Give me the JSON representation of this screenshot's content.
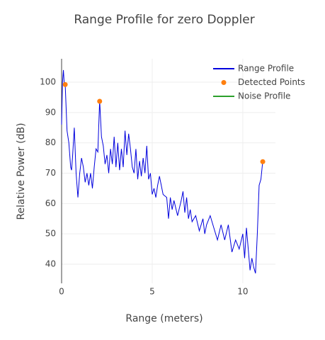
{
  "chart_data": {
    "type": "line",
    "title": "Range Profile for zero Doppler",
    "x_label": "Range (meters)",
    "y_label": "Relative Power (dB)",
    "xlim": [
      0,
      11.8
    ],
    "ylim": [
      33.7,
      107.7
    ],
    "xticks": [
      0,
      5,
      10
    ],
    "yticks": [
      40,
      50,
      60,
      70,
      80,
      90,
      100
    ],
    "grid": true,
    "legend": "top-right",
    "series": [
      {
        "name": "Range Profile",
        "color": "#0000dd",
        "mode": "lines",
        "x": [
          0.0,
          0.05,
          0.1,
          0.15,
          0.2,
          0.3,
          0.4,
          0.5,
          0.55,
          0.6,
          0.7,
          0.8,
          0.9,
          1.0,
          1.1,
          1.2,
          1.3,
          1.4,
          1.5,
          1.6,
          1.7,
          1.8,
          1.9,
          2.0,
          2.1,
          2.2,
          2.3,
          2.4,
          2.5,
          2.6,
          2.7,
          2.8,
          2.9,
          3.0,
          3.1,
          3.2,
          3.3,
          3.4,
          3.5,
          3.6,
          3.7,
          3.8,
          3.9,
          4.0,
          4.1,
          4.2,
          4.3,
          4.4,
          4.5,
          4.6,
          4.7,
          4.8,
          4.9,
          5.0,
          5.1,
          5.2,
          5.3,
          5.4,
          5.5,
          5.6,
          5.8,
          5.9,
          6.0,
          6.1,
          6.2,
          6.4,
          6.6,
          6.7,
          6.8,
          6.9,
          7.0,
          7.1,
          7.2,
          7.4,
          7.6,
          7.8,
          7.9,
          8.0,
          8.2,
          8.4,
          8.6,
          8.8,
          9.0,
          9.2,
          9.4,
          9.6,
          9.8,
          10.0,
          10.1,
          10.2,
          10.3,
          10.4,
          10.5,
          10.6,
          10.7,
          10.8,
          10.9,
          11.0,
          11.1,
          11.15
        ],
        "values": [
          86,
          100,
          104,
          99,
          99,
          84,
          80,
          72,
          71,
          75,
          85,
          70,
          62,
          70,
          75,
          72,
          67,
          70,
          66,
          70,
          65,
          72,
          78,
          77,
          94,
          82,
          79,
          73,
          76,
          70,
          78,
          73,
          82,
          72,
          80,
          71,
          78,
          72,
          84,
          76,
          83,
          78,
          72,
          70,
          78,
          68,
          74,
          69,
          75,
          70,
          79,
          68,
          70,
          63,
          65,
          62,
          66,
          69,
          66,
          63,
          62,
          55,
          62,
          58,
          61,
          56,
          61,
          64,
          57,
          62,
          55,
          58,
          54,
          56,
          51,
          55,
          50,
          53,
          56,
          52,
          48,
          53,
          48,
          53,
          44,
          48,
          45,
          50,
          42,
          52,
          45,
          38,
          42,
          39,
          37,
          50,
          66,
          68,
          74,
          74
        ]
      },
      {
        "name": "Detected Points",
        "color": "#ff7f0e",
        "mode": "markers",
        "x": [
          0.2,
          2.1,
          11.1
        ],
        "values": [
          99.2,
          93.7,
          73.8
        ]
      },
      {
        "name": "Noise Profile",
        "color": "#2ca02c",
        "mode": "lines",
        "x": [],
        "values": []
      }
    ]
  }
}
